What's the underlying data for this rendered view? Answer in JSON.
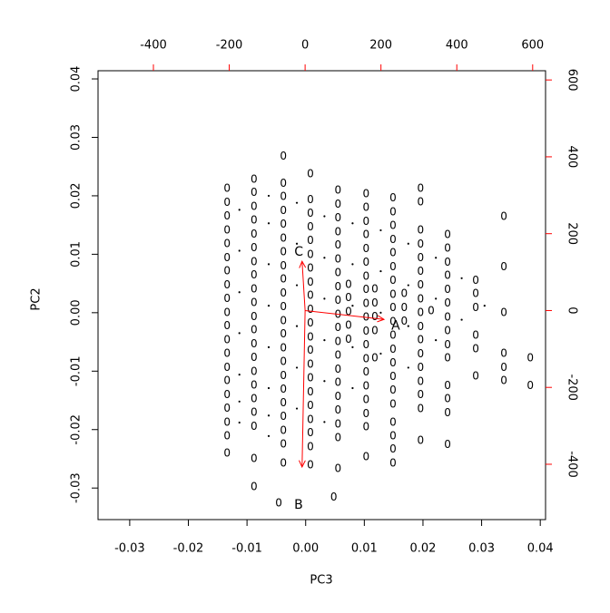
{
  "chart_data": {
    "type": "biplot",
    "x_label": "PC3",
    "y_label": "PC2",
    "xlim": [
      -0.0354,
      0.0409
    ],
    "ylim": [
      -0.0354,
      0.0414
    ],
    "xticks": [
      -0.03,
      -0.02,
      -0.01,
      {
        "value": 0,
        "label": "0.00"
      },
      0.01,
      0.02,
      0.03,
      0.04
    ],
    "yticks": [
      -0.03,
      -0.02,
      -0.01,
      {
        "value": 0,
        "label": "0.00"
      },
      0.01,
      0.02,
      0.03,
      0.04
    ],
    "x2lim": [
      -546,
      634
    ],
    "x2ticks": [
      -400,
      -200,
      0,
      200,
      400,
      600
    ],
    "y2lim": [
      -544,
      624
    ],
    "y2ticks": [
      -400,
      -200,
      0,
      200,
      400,
      600
    ],
    "point_label": "0",
    "point_color": "#000000",
    "points": {
      "x": [
        -0.0134,
        -0.0134,
        -0.0134,
        -0.0134,
        -0.0134,
        -0.0134,
        -0.0134,
        -0.0134,
        -0.0134,
        -0.0134,
        -0.0134,
        -0.0134,
        -0.0134,
        -0.0134,
        -0.0134,
        -0.0134,
        -0.0134,
        -0.0134,
        -0.0134,
        -0.0134,
        -0.0088,
        -0.0088,
        -0.0088,
        -0.0088,
        -0.0088,
        -0.0088,
        -0.0088,
        -0.0088,
        -0.0088,
        -0.0088,
        -0.0088,
        -0.0088,
        -0.0088,
        -0.0088,
        -0.0088,
        -0.0088,
        -0.0088,
        -0.0088,
        -0.0088,
        -0.0088,
        -0.0088,
        -0.0038,
        -0.0038,
        -0.0038,
        -0.0038,
        -0.0038,
        -0.0038,
        -0.0038,
        -0.0038,
        -0.0038,
        -0.0038,
        -0.0038,
        -0.0038,
        -0.0038,
        -0.0038,
        -0.0038,
        -0.0038,
        -0.0038,
        -0.0038,
        -0.0038,
        -0.0038,
        -0.0038,
        -0.0038,
        -0.0046,
        0.0008,
        0.0008,
        0.0008,
        0.0008,
        0.0008,
        0.0008,
        0.0008,
        0.0008,
        0.0008,
        0.0008,
        0.0008,
        0.0008,
        0.0008,
        0.0008,
        0.0008,
        0.0008,
        0.0008,
        0.0008,
        0.0008,
        0.0008,
        0.0008,
        0.0055,
        0.0055,
        0.0055,
        0.0055,
        0.0055,
        0.0055,
        0.0055,
        0.0055,
        0.0055,
        0.0055,
        0.0055,
        0.0055,
        0.0055,
        0.0055,
        0.0055,
        0.0055,
        0.0055,
        0.0055,
        0.0055,
        0.0055,
        0.0048,
        0.0103,
        0.0103,
        0.0103,
        0.0103,
        0.0103,
        0.0103,
        0.0103,
        0.0103,
        0.0103,
        0.0103,
        0.0103,
        0.0103,
        0.0103,
        0.0103,
        0.0103,
        0.0103,
        0.0103,
        0.0103,
        0.0103,
        0.0073,
        0.0073,
        0.0073,
        0.0073,
        0.0073,
        0.0118,
        0.0118,
        0.0118,
        0.0118,
        0.0118,
        0.0149,
        0.0149,
        0.0149,
        0.0149,
        0.0149,
        0.0149,
        0.0149,
        0.0149,
        0.0149,
        0.0149,
        0.0149,
        0.0149,
        0.0149,
        0.0149,
        0.0149,
        0.0149,
        0.0149,
        0.0149,
        0.0149,
        0.0149,
        0.0168,
        0.0168,
        0.0168,
        0.0196,
        0.0196,
        0.0196,
        0.0196,
        0.0196,
        0.0196,
        0.0196,
        0.0196,
        0.0196,
        0.0196,
        0.0196,
        0.0196,
        0.0196,
        0.0196,
        0.0196,
        0.0196,
        0.0196,
        0.0214,
        0.0242,
        0.0242,
        0.0242,
        0.0242,
        0.0242,
        0.0242,
        0.0242,
        0.0242,
        0.0242,
        0.0242,
        0.0242,
        0.0242,
        0.0242,
        0.0242,
        0.029,
        0.029,
        0.029,
        0.029,
        0.029,
        0.029,
        0.0338,
        0.0338,
        0.0338,
        0.0338,
        0.0338,
        0.0338,
        0.0383,
        0.0383
      ],
      "values": [
        0.0212,
        0.0188,
        0.0165,
        0.0141,
        0.0118,
        0.0094,
        0.0071,
        0.0047,
        0.0024,
        0,
        -0.0023,
        -0.0047,
        -0.007,
        -0.0094,
        -0.0117,
        -0.0141,
        -0.0164,
        -0.0188,
        -0.0211,
        -0.0241,
        0.0228,
        0.0205,
        0.0181,
        0.0158,
        0.0134,
        0.0111,
        0.0087,
        0.0064,
        0.004,
        0.0017,
        -0.0007,
        -0.003,
        -0.0054,
        -0.0077,
        -0.0101,
        -0.0124,
        -0.0148,
        -0.0171,
        -0.0195,
        -0.025,
        -0.0298,
        0.0267,
        0.0221,
        0.0198,
        0.0174,
        0.0151,
        0.0127,
        0.0104,
        0.008,
        0.0057,
        0.0033,
        0.001,
        -0.0014,
        -0.0037,
        -0.0061,
        -0.0084,
        -0.0108,
        -0.0131,
        -0.0155,
        -0.0178,
        -0.0202,
        -0.0225,
        -0.0258,
        -0.0326,
        0.0237,
        0.0193,
        0.017,
        0.0146,
        0.0123,
        0.0099,
        0.0076,
        0.0052,
        0.0029,
        0.0005,
        -0.0018,
        -0.0042,
        -0.0065,
        -0.0089,
        -0.0112,
        -0.0136,
        -0.0159,
        -0.0183,
        -0.0206,
        -0.023,
        -0.0261,
        0.0209,
        0.0185,
        0.0162,
        0.0138,
        0.0115,
        0.0091,
        0.0068,
        0.0044,
        0.0021,
        -0.0003,
        -0.0026,
        -0.005,
        -0.0073,
        -0.0097,
        -0.012,
        -0.0144,
        -0.0167,
        -0.0191,
        -0.0214,
        -0.0267,
        -0.0316,
        0.0203,
        0.018,
        0.0156,
        0.0133,
        0.0109,
        0.0086,
        0.0062,
        0.0039,
        0.0015,
        -0.0008,
        -0.0032,
        -0.0055,
        -0.0079,
        -0.0102,
        -0.0126,
        -0.0149,
        -0.0173,
        -0.0196,
        -0.0247,
        0.0048,
        0.0025,
        0.0001,
        -0.0022,
        -0.0046,
        0.004,
        0.0016,
        -0.0007,
        -0.0031,
        -0.0078,
        0.0196,
        0.0172,
        0.0149,
        0.0125,
        0.0102,
        0.0078,
        0.0055,
        0.0031,
        0.0008,
        -0.0016,
        -0.0039,
        -0.0063,
        -0.0086,
        -0.011,
        -0.0133,
        -0.0157,
        -0.0188,
        -0.0211,
        -0.0234,
        -0.0258,
        0.0032,
        0.0008,
        -0.0015,
        0.0212,
        0.0189,
        0.0141,
        0.0117,
        0.0094,
        0.007,
        0.0047,
        0.0023,
        0,
        -0.0024,
        -0.0047,
        -0.0071,
        -0.0094,
        -0.0118,
        -0.0141,
        -0.0165,
        -0.0219,
        0.0003,
        0.0133,
        0.011,
        0.0086,
        0.0063,
        0.0039,
        0.0016,
        -0.0008,
        -0.0031,
        -0.0055,
        -0.0078,
        -0.0125,
        -0.0148,
        -0.0172,
        -0.0226,
        0.0055,
        0.0032,
        0.0008,
        -0.0039,
        -0.0062,
        -0.0109,
        0.0164,
        0.0078,
        0,
        -0.007,
        -0.0094,
        -0.0117,
        -0.0078,
        -0.0125
      ]
    },
    "dots": {
      "x": [
        -0.0113,
        -0.0113,
        -0.0113,
        -0.0113,
        -0.0113,
        -0.0113,
        -0.0113,
        -0.0063,
        -0.0063,
        -0.0063,
        -0.0063,
        -0.0063,
        -0.0063,
        -0.0063,
        -0.0063,
        -0.0015,
        -0.0015,
        -0.0015,
        -0.0015,
        -0.0015,
        -0.0015,
        0.0032,
        0.0032,
        0.0032,
        0.0032,
        0.0032,
        0.0032,
        0.008,
        0.008,
        0.008,
        0.008,
        0.008,
        0.0128,
        0.0128,
        0.0128,
        0.0128,
        0.0175,
        0.0175,
        0.0175,
        0.0175,
        0.0222,
        0.0222,
        0.0222,
        0.0266,
        0.0266,
        0.0305
      ],
      "values": [
        0.0176,
        0.0106,
        0.0035,
        -0.0035,
        -0.0106,
        -0.0152,
        -0.0188,
        0.02,
        0.0153,
        0.0083,
        0.0012,
        -0.0059,
        -0.0129,
        -0.0176,
        -0.0211,
        0.0188,
        0.0118,
        0.0047,
        -0.0023,
        -0.0094,
        -0.0164,
        0.0165,
        0.0094,
        0.0024,
        -0.0047,
        -0.0117,
        -0.0187,
        0.0153,
        0.0083,
        0.0012,
        -0.0059,
        -0.0129,
        0.0141,
        0.0071,
        0,
        -0.007,
        0.0118,
        0.0047,
        -0.0023,
        -0.0094,
        0.0094,
        0.0024,
        -0.0047,
        0.0059,
        -0.0012,
        0.0012
      ]
    },
    "loadings": {
      "labels": [
        "A",
        "B",
        "C"
      ],
      "x": [
        208,
        -8,
        -8
      ],
      "values": [
        -23,
        -407,
        128
      ],
      "color": "#ff0000"
    }
  }
}
